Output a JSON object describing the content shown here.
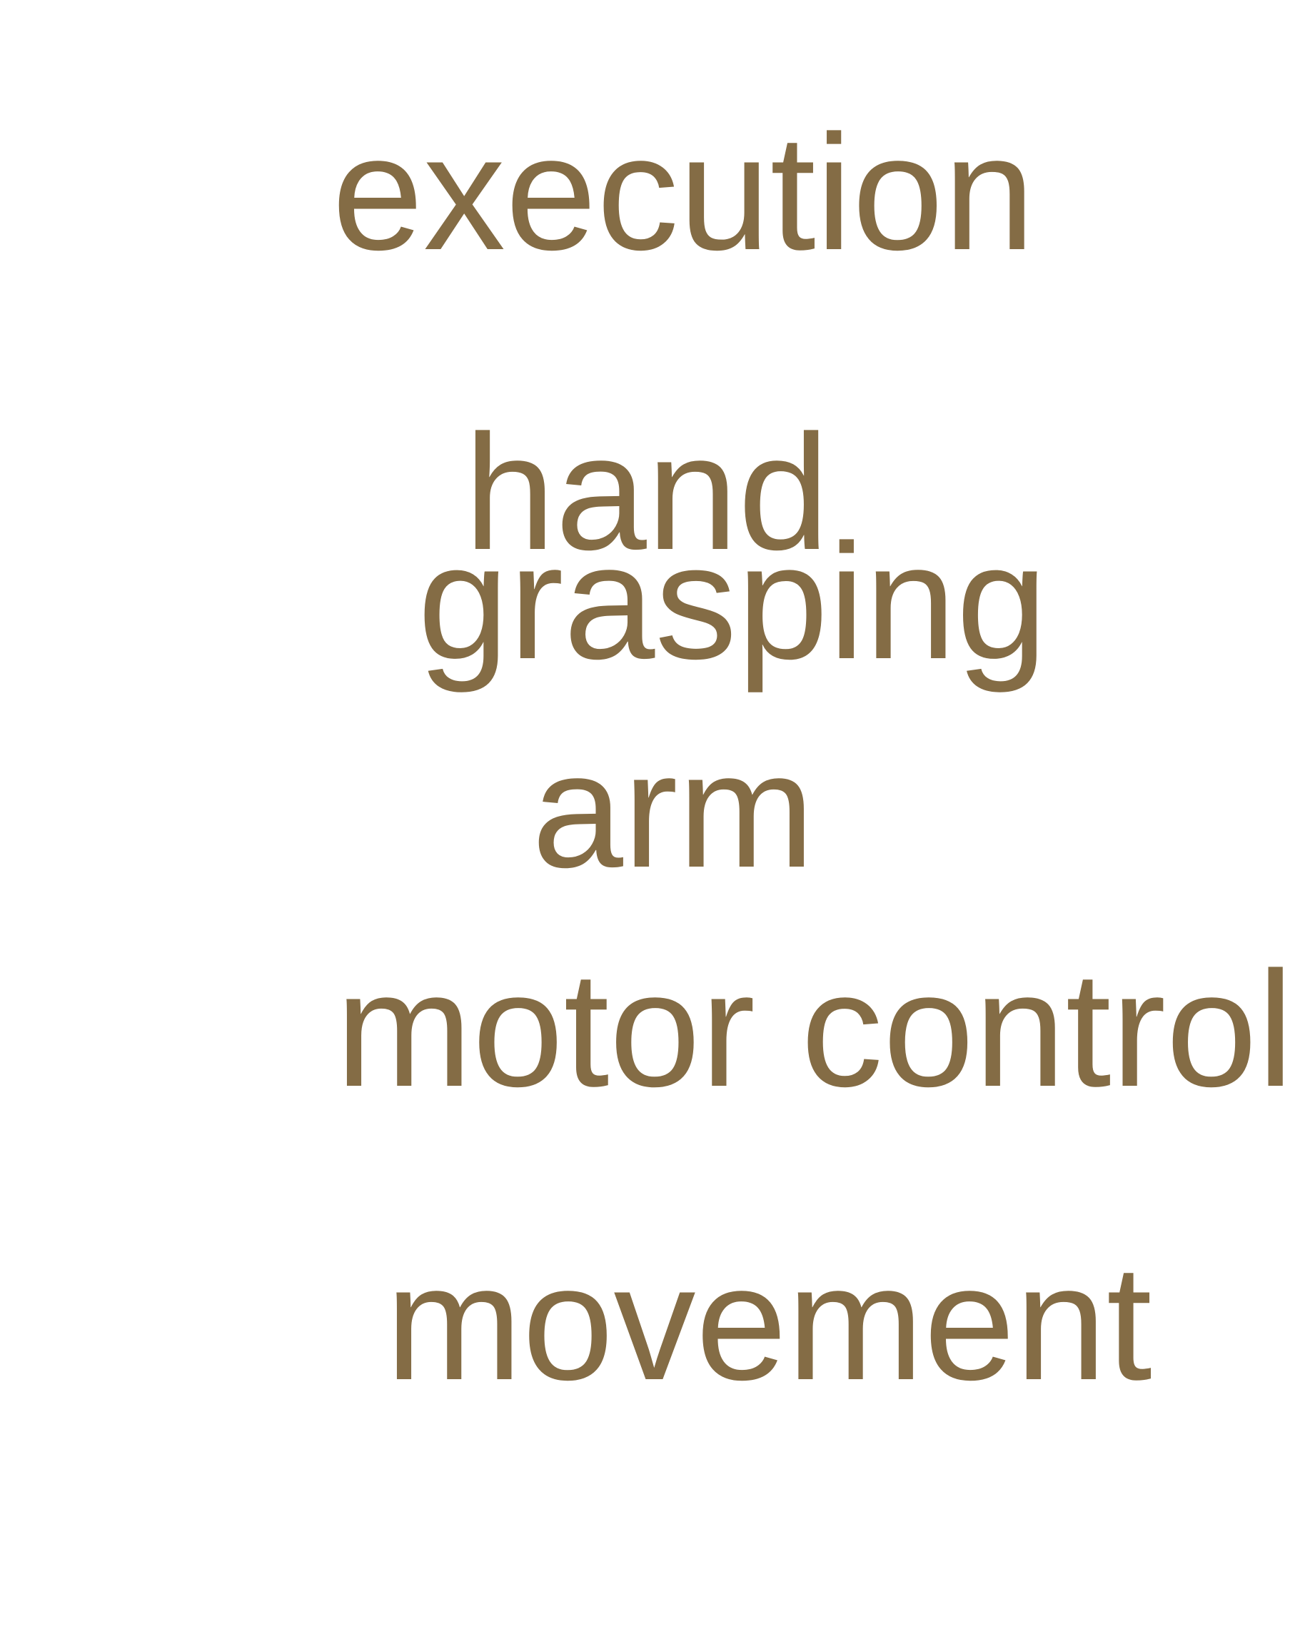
{
  "colors": {
    "text": "#846c45",
    "background": "#ffffff"
  },
  "words": [
    "execution",
    "hand",
    "grasping",
    "arm",
    "motor control",
    "movement"
  ]
}
